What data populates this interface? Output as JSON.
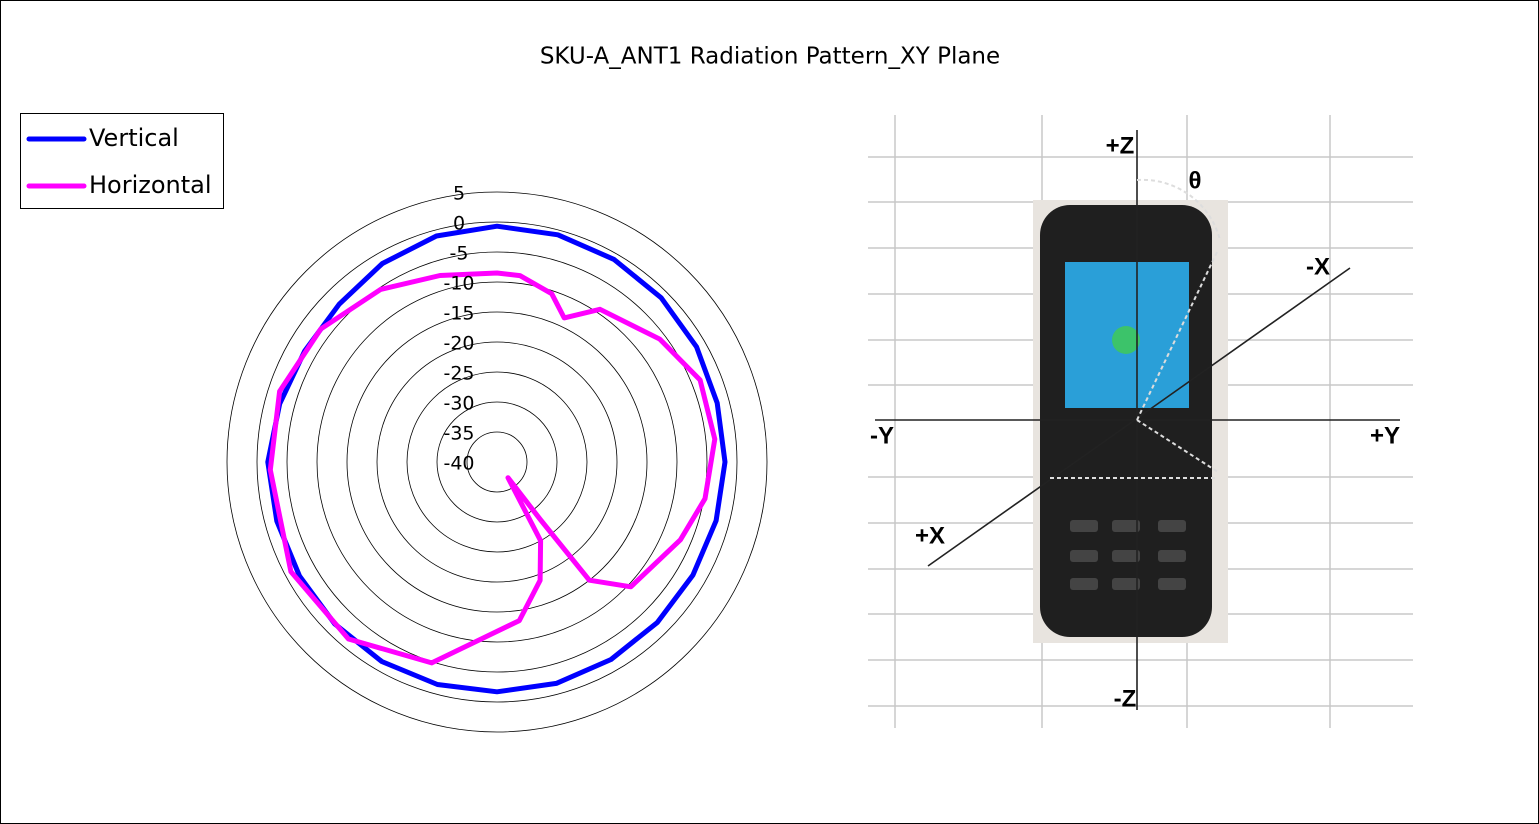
{
  "chart_data": {
    "type": "polar",
    "title": "SKU-A_ANT1 Radiation Pattern_XY Plane",
    "ylim": [
      -40,
      5
    ],
    "yticks": [
      5,
      0,
      -5,
      -10,
      -15,
      -20,
      -25,
      -30,
      -35,
      -40
    ],
    "grid": true,
    "legend": "upper left",
    "series": [
      {
        "name": "Vertical",
        "color": "#0000ff",
        "x": [
          0,
          15,
          30,
          45,
          60,
          75,
          90,
          105,
          120,
          135,
          150,
          165,
          180,
          195,
          210,
          225,
          240,
          255,
          270,
          285,
          300,
          315,
          330,
          345
        ],
        "values": [
          -0.7,
          -0.8,
          -1.0,
          -1.3,
          -1.6,
          -2.0,
          -2.0,
          -2.2,
          -2.3,
          -2.2,
          -2.0,
          -1.8,
          -1.7,
          -1.6,
          -1.6,
          -1.8,
          -2.0,
          -2.0,
          -1.8,
          -2.5,
          -3.0,
          -2.8,
          -1.8,
          -1.0
        ]
      },
      {
        "name": "Horizontal",
        "color": "#ff00ff",
        "x": [
          0,
          7,
          18,
          25,
          34,
          53,
          68,
          84,
          100,
          113,
          133,
          142,
          143,
          145,
          151,
          160,
          172,
          198,
          220,
          242,
          268,
          288,
          307,
          326,
          343
        ],
        "values": [
          -8.5,
          -8.7,
          -10.5,
          -13.5,
          -9.3,
          -6,
          -3.5,
          -3.5,
          -4.8,
          -6.8,
          -9.5,
          -15,
          -28,
          -36.8,
          -25,
          -19,
          -13.3,
          -4.8,
          -1.5,
          -1.1,
          -2.2,
          -1.9,
          -3.2,
          -5.3,
          -7.5
        ]
      }
    ],
    "annotations": [
      "+Z",
      "θ",
      "-X",
      "-Y",
      "+Y",
      "+X",
      "-Z"
    ]
  }
}
